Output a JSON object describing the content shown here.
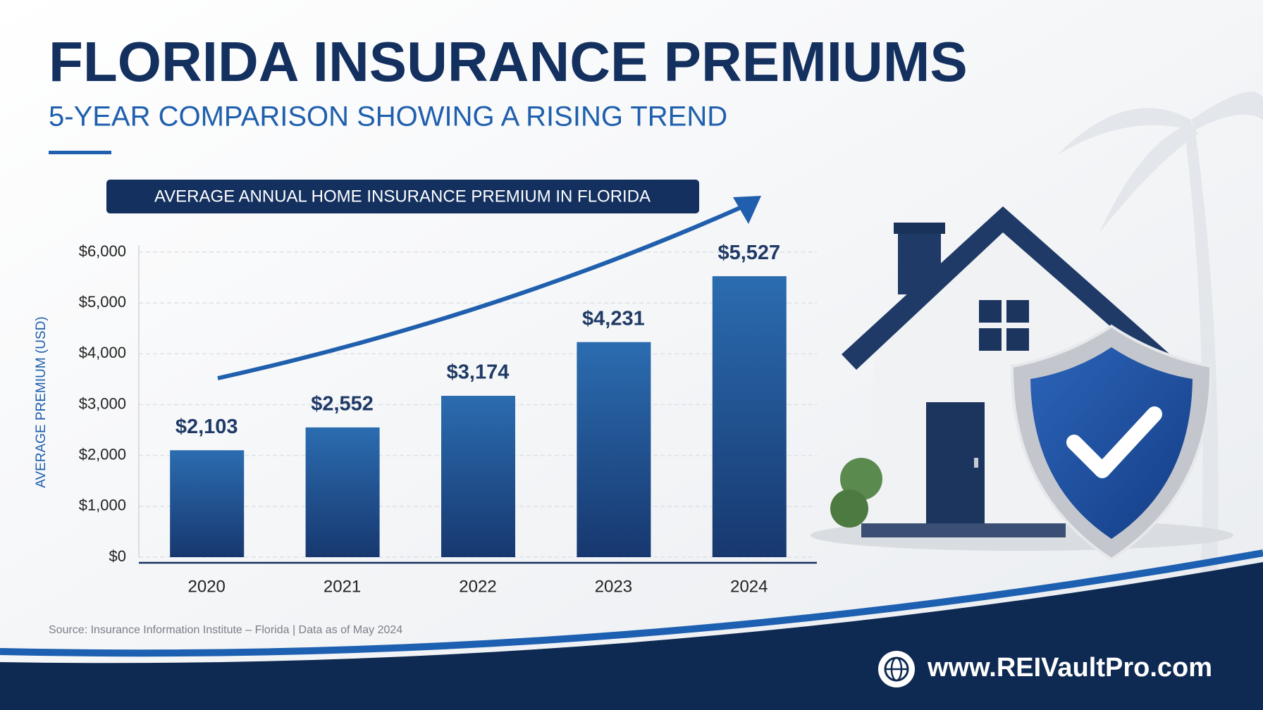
{
  "chart_data": {
    "type": "bar",
    "title": "FLORIDA INSURANCE PREMIUMS",
    "subtitle": "5-YEAR COMPARISON SHOWING A RISING TREND",
    "chart_title": "AVERAGE ANNUAL HOME INSURANCE PREMIUM IN FLORIDA",
    "y_label": "AVERAGE PREMIUM (USD)",
    "categories": [
      "2020",
      "2021",
      "2022",
      "2023",
      "2024"
    ],
    "values": [
      2103,
      2552,
      3174,
      4231,
      5527
    ],
    "value_labels": [
      "$2,103",
      "$2,552",
      "$3,174",
      "$4,231",
      "$5,527"
    ],
    "color": "#1e4f93",
    "ylim": [
      0,
      6000
    ],
    "yticks": [
      {
        "value": 0,
        "label": "$0"
      },
      {
        "value": 1000,
        "label": "$1,000"
      },
      {
        "value": 2000,
        "label": "$2,000"
      },
      {
        "value": 3000,
        "label": "$3,000"
      },
      {
        "value": 4000,
        "label": "$4,000"
      },
      {
        "value": 5000,
        "label": "$5,000"
      },
      {
        "value": 6000,
        "label": "$6,000"
      }
    ],
    "grid": true
  },
  "source": "Source: Insurance Information Institute – Florida | Data as of May 2024",
  "website": "www.REIVaultPro.com"
}
